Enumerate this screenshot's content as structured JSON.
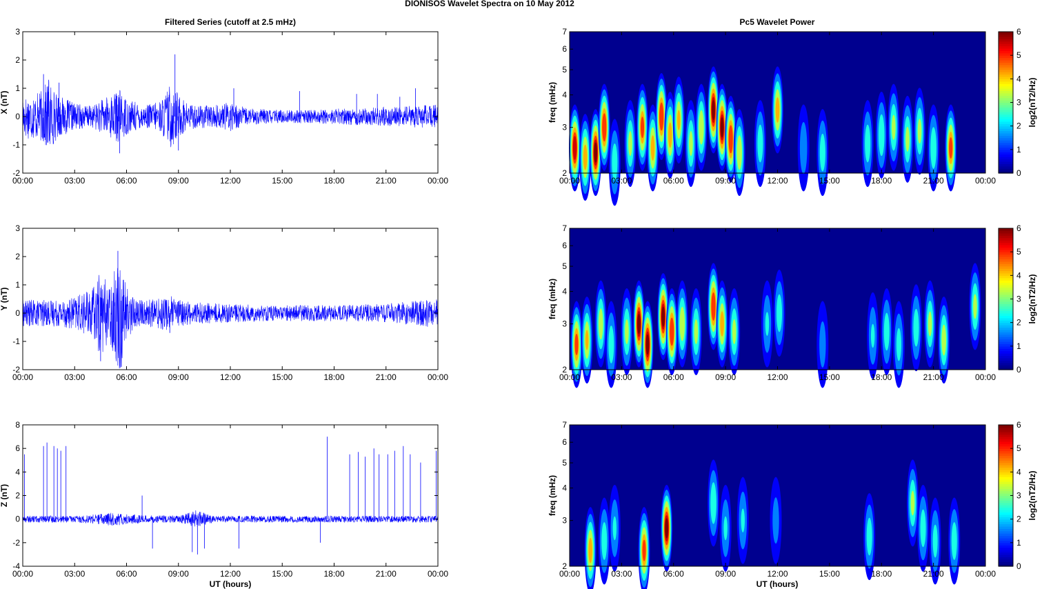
{
  "figure": {
    "suptitle": "DIONISOS Wavelet Spectra on 10 May       2012",
    "left_title": "Filtered Series (cutoff at 2.5 mHz)",
    "right_title": "Pc5 Wavelet Power",
    "xlabel": "UT (hours)"
  },
  "colors": {
    "series_line": "#0000ff",
    "colormap": "jet",
    "background_power": "#00008f"
  },
  "chart_data": [
    {
      "type": "line",
      "component": "X",
      "ylabel": "X (nT)",
      "xlim_hours": [
        0,
        24
      ],
      "ylim": [
        -2,
        3
      ],
      "yticks": [
        "-2",
        "-1",
        "0",
        "1",
        "2",
        "3"
      ],
      "xticks": [
        "00:00",
        "03:00",
        "06:00",
        "09:00",
        "12:00",
        "15:00",
        "18:00",
        "21:00",
        "00:00"
      ],
      "grid": false,
      "series": [
        {
          "envelope": [
            [
              0,
              0.8
            ],
            [
              1,
              0.9
            ],
            [
              1.5,
              1.4
            ],
            [
              2,
              0.8
            ],
            [
              3,
              0.5
            ],
            [
              4,
              0.4
            ],
            [
              5,
              0.8
            ],
            [
              5.6,
              1.0
            ],
            [
              6,
              0.7
            ],
            [
              7,
              0.4
            ],
            [
              8,
              0.6
            ],
            [
              8.5,
              1.2
            ],
            [
              9,
              0.9
            ],
            [
              9.5,
              0.5
            ],
            [
              10,
              0.45
            ],
            [
              11,
              0.4
            ],
            [
              12,
              0.55
            ],
            [
              13,
              0.3
            ],
            [
              15,
              0.25
            ],
            [
              17,
              0.25
            ],
            [
              18,
              0.3
            ],
            [
              21,
              0.35
            ],
            [
              24,
              0.45
            ]
          ],
          "spikes": [
            [
              1.2,
              1.5
            ],
            [
              1.5,
              1.3
            ],
            [
              2.1,
              1.2
            ],
            [
              5.6,
              -1.3
            ],
            [
              8.8,
              2.2
            ],
            [
              9,
              -1.2
            ],
            [
              12.2,
              1.0
            ],
            [
              16,
              0.9
            ],
            [
              19.3,
              0.8
            ],
            [
              20.5,
              0.8
            ],
            [
              21.8,
              0.7
            ],
            [
              22.7,
              1.0
            ]
          ]
        }
      ]
    },
    {
      "type": "line",
      "component": "Y",
      "ylabel": "Y (nT)",
      "xlim_hours": [
        0,
        24
      ],
      "ylim": [
        -2,
        3
      ],
      "yticks": [
        "-2",
        "-1",
        "0",
        "1",
        "2",
        "3"
      ],
      "xticks": [
        "00:00",
        "03:00",
        "06:00",
        "09:00",
        "12:00",
        "15:00",
        "18:00",
        "21:00",
        "00:00"
      ],
      "grid": false,
      "series": [
        {
          "envelope": [
            [
              0,
              0.5
            ],
            [
              2,
              0.5
            ],
            [
              3,
              0.6
            ],
            [
              4,
              0.9
            ],
            [
              4.5,
              1.6
            ],
            [
              5,
              1.0
            ],
            [
              5.6,
              2.2
            ],
            [
              6,
              1.0
            ],
            [
              6.5,
              0.6
            ],
            [
              7,
              0.5
            ],
            [
              8,
              0.6
            ],
            [
              8.5,
              0.7
            ],
            [
              9,
              0.5
            ],
            [
              10,
              0.4
            ],
            [
              12,
              0.35
            ],
            [
              14,
              0.3
            ],
            [
              16,
              0.3
            ],
            [
              18,
              0.3
            ],
            [
              21,
              0.35
            ],
            [
              24,
              0.55
            ]
          ],
          "spikes": [
            [
              4.5,
              -1.7
            ],
            [
              5.5,
              2.2
            ],
            [
              5.7,
              -1.9
            ],
            [
              8.5,
              -0.7
            ]
          ]
        }
      ]
    },
    {
      "type": "line",
      "component": "Z",
      "ylabel": "Z (nT)",
      "xlim_hours": [
        0,
        24
      ],
      "ylim": [
        -4,
        8
      ],
      "yticks": [
        "-4",
        "-2",
        "0",
        "2",
        "4",
        "6",
        "8"
      ],
      "xticks": [
        "00:00",
        "03:00",
        "06:00",
        "09:00",
        "12:00",
        "15:00",
        "18:00",
        "21:00",
        "00:00"
      ],
      "grid": false,
      "series": [
        {
          "envelope": [
            [
              0,
              0.3
            ],
            [
              3,
              0.3
            ],
            [
              4,
              0.4
            ],
            [
              5,
              0.6
            ],
            [
              6,
              0.5
            ],
            [
              7,
              0.35
            ],
            [
              9,
              0.3
            ],
            [
              10,
              0.8
            ],
            [
              11,
              0.3
            ],
            [
              24,
              0.3
            ]
          ],
          "spikes": [
            [
              0.1,
              5.5
            ],
            [
              1.2,
              6.2
            ],
            [
              1.4,
              6.5
            ],
            [
              1.8,
              6.2
            ],
            [
              2.0,
              6.0
            ],
            [
              2.2,
              5.8
            ],
            [
              2.5,
              6.2
            ],
            [
              6.9,
              2.0
            ],
            [
              7.5,
              -2.5
            ],
            [
              9.8,
              -2.8
            ],
            [
              10.1,
              -3.0
            ],
            [
              10.5,
              -2.5
            ],
            [
              12.5,
              -2.5
            ],
            [
              17.2,
              -2.0
            ],
            [
              17.6,
              7.0
            ],
            [
              18.9,
              5.5
            ],
            [
              19.4,
              5.7
            ],
            [
              19.8,
              5.3
            ],
            [
              20.3,
              6.0
            ],
            [
              20.6,
              5.5
            ],
            [
              21.1,
              5.5
            ],
            [
              21.5,
              5.8
            ],
            [
              22.0,
              6.2
            ],
            [
              22.4,
              5.5
            ],
            [
              23.0,
              4.8
            ],
            [
              23.9,
              5.8
            ]
          ]
        }
      ]
    },
    {
      "type": "heatmap",
      "component": "X",
      "ylabel": "freq (mHz)",
      "xlim_hours": [
        0,
        24
      ],
      "ylim_mhz": [
        2,
        7
      ],
      "yscale": "log",
      "yticks": [
        "2",
        "3",
        "4",
        "5",
        "6",
        "7"
      ],
      "xticks": [
        "00:00",
        "03:00",
        "06:00",
        "09:00",
        "12:00",
        "15:00",
        "18:00",
        "21:00",
        "00:00"
      ],
      "colorbar": {
        "label": "log2(nT2/Hz)",
        "range": [
          0,
          6
        ],
        "ticks": [
          "0",
          "1",
          "2",
          "3",
          "4",
          "5",
          "6"
        ]
      },
      "blobs": [
        [
          0.3,
          2.5,
          5.8
        ],
        [
          0.9,
          2.3,
          4.5
        ],
        [
          1.5,
          2.4,
          6.0
        ],
        [
          2.0,
          3.0,
          5.5
        ],
        [
          2.6,
          2.2,
          3.0
        ],
        [
          3.5,
          2.6,
          3.5
        ],
        [
          4.2,
          3.0,
          5.0
        ],
        [
          4.8,
          2.5,
          4.5
        ],
        [
          5.3,
          3.3,
          5.5
        ],
        [
          5.8,
          2.8,
          4.5
        ],
        [
          6.3,
          3.2,
          4.2
        ],
        [
          7.0,
          2.6,
          3.5
        ],
        [
          7.6,
          3.0,
          4.0
        ],
        [
          8.3,
          3.5,
          6.0
        ],
        [
          8.8,
          3.0,
          6.0
        ],
        [
          9.3,
          2.7,
          5.5
        ],
        [
          9.8,
          2.4,
          4.0
        ],
        [
          11.0,
          2.6,
          3.0
        ],
        [
          12.0,
          3.5,
          4.5
        ],
        [
          13.5,
          2.5,
          2.2
        ],
        [
          14.6,
          2.4,
          3.0
        ],
        [
          17.2,
          2.6,
          3.0
        ],
        [
          18.0,
          2.8,
          3.2
        ],
        [
          18.7,
          3.0,
          3.5
        ],
        [
          19.5,
          2.7,
          3.5
        ],
        [
          20.2,
          2.9,
          3.5
        ],
        [
          21.0,
          2.5,
          3.2
        ],
        [
          22.0,
          2.5,
          5.0
        ]
      ]
    },
    {
      "type": "heatmap",
      "component": "Y",
      "ylabel": "freq (mHz)",
      "xlim_hours": [
        0,
        24
      ],
      "ylim_mhz": [
        2,
        7
      ],
      "yscale": "log",
      "yticks": [
        "2",
        "3",
        "4",
        "5",
        "6",
        "7"
      ],
      "xticks": [
        "00:00",
        "03:00",
        "06:00",
        "09:00",
        "12:00",
        "15:00",
        "18:00",
        "21:00",
        "00:00"
      ],
      "colorbar": {
        "label": "log2(nT2/Hz)",
        "range": [
          0,
          6
        ],
        "ticks": [
          "0",
          "1",
          "2",
          "3",
          "4",
          "5",
          "6"
        ]
      },
      "blobs": [
        [
          0.4,
          2.5,
          5.0
        ],
        [
          1.0,
          2.6,
          4.2
        ],
        [
          1.8,
          3.0,
          3.8
        ],
        [
          2.4,
          2.5,
          3.0
        ],
        [
          3.3,
          2.8,
          3.5
        ],
        [
          4.0,
          3.0,
          6.0
        ],
        [
          4.5,
          2.5,
          6.0
        ],
        [
          5.4,
          3.2,
          6.0
        ],
        [
          5.9,
          2.8,
          5.5
        ],
        [
          6.5,
          3.0,
          4.0
        ],
        [
          7.3,
          2.8,
          3.5
        ],
        [
          8.3,
          3.5,
          5.5
        ],
        [
          8.8,
          3.0,
          4.5
        ],
        [
          9.5,
          2.8,
          3.5
        ],
        [
          11.4,
          3.0,
          2.5
        ],
        [
          12.1,
          3.3,
          3.0
        ],
        [
          14.6,
          2.5,
          2.0
        ],
        [
          17.5,
          2.7,
          2.5
        ],
        [
          18.3,
          2.8,
          3.0
        ],
        [
          19.0,
          2.5,
          2.8
        ],
        [
          20.0,
          2.9,
          3.0
        ],
        [
          20.8,
          3.0,
          3.5
        ],
        [
          21.6,
          2.6,
          3.8
        ],
        [
          23.4,
          3.5,
          3.5
        ]
      ]
    },
    {
      "type": "heatmap",
      "component": "Z",
      "ylabel": "freq (mHz)",
      "xlim_hours": [
        0,
        24
      ],
      "ylim_mhz": [
        2,
        7
      ],
      "yscale": "log",
      "yticks": [
        "2",
        "3",
        "4",
        "5",
        "6",
        "7"
      ],
      "xticks": [
        "00:00",
        "03:00",
        "06:00",
        "09:00",
        "12:00",
        "15:00",
        "18:00",
        "21:00",
        "00:00"
      ],
      "colorbar": {
        "label": "log2(nT2/Hz)",
        "range": [
          0,
          6
        ],
        "ticks": [
          "0",
          "1",
          "2",
          "3",
          "4",
          "5",
          "6"
        ]
      },
      "blobs": [
        [
          1.2,
          2.3,
          4.5
        ],
        [
          2.0,
          2.5,
          3.0
        ],
        [
          2.6,
          2.8,
          2.5
        ],
        [
          4.3,
          2.3,
          5.0
        ],
        [
          5.6,
          2.8,
          6.0
        ],
        [
          8.3,
          3.5,
          3.2
        ],
        [
          9.0,
          2.8,
          2.5
        ],
        [
          10.0,
          3.0,
          2.5
        ],
        [
          11.9,
          3.0,
          2.0
        ],
        [
          17.3,
          2.6,
          3.0
        ],
        [
          19.8,
          3.5,
          3.5
        ],
        [
          20.4,
          2.8,
          3.0
        ],
        [
          21.1,
          2.5,
          2.8
        ],
        [
          22.2,
          2.5,
          3.0
        ]
      ]
    }
  ]
}
